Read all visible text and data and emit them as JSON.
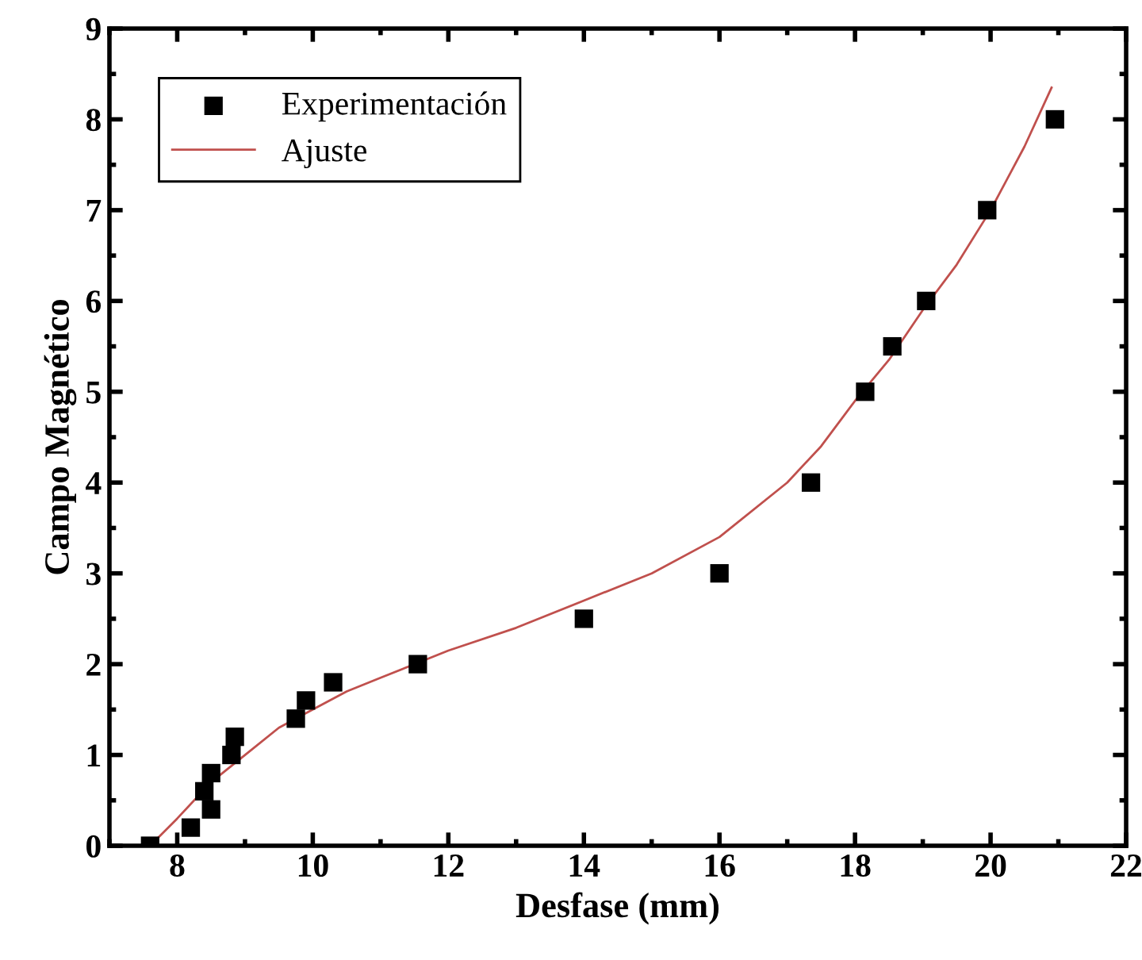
{
  "chart_data": {
    "type": "scatter",
    "xlabel": "Desfase (mm)",
    "ylabel": "Campo Magnético",
    "xlim": [
      7,
      22
    ],
    "xticks": [
      8,
      10,
      12,
      14,
      16,
      18,
      20,
      22
    ],
    "ylim": [
      0,
      9
    ],
    "yticks": [
      0,
      1,
      2,
      3,
      4,
      5,
      6,
      7,
      8,
      9
    ],
    "grid": false,
    "legend": "top left",
    "series": [
      {
        "name": "Experimentación",
        "marker": "square",
        "color": "#000000",
        "x": [
          7.6,
          8.2,
          8.4,
          8.5,
          8.5,
          8.8,
          8.85,
          9.75,
          9.9,
          10.3,
          11.55,
          14.0,
          16.0,
          17.35,
          18.15,
          18.55,
          19.05,
          19.95,
          20.95
        ],
        "values": [
          0,
          0.2,
          0.6,
          0.4,
          0.8,
          1.0,
          1.2,
          1.4,
          1.6,
          1.8,
          2.0,
          2.5,
          3.0,
          4.0,
          5.0,
          5.5,
          6.0,
          7.0,
          8.0
        ]
      },
      {
        "name": "Ajuste",
        "type": "line",
        "line_style": "solid",
        "color": "#c0504d",
        "x": [
          7.6,
          8,
          8.5,
          9,
          9.5,
          10,
          10.5,
          11,
          12,
          13,
          14,
          15,
          16,
          17,
          17.5,
          18,
          18.5,
          19,
          19.5,
          20,
          20.5,
          20.9
        ],
        "values": [
          0,
          0.3,
          0.7,
          1.0,
          1.3,
          1.5,
          1.7,
          1.85,
          2.15,
          2.4,
          2.7,
          3.0,
          3.4,
          4.0,
          4.4,
          4.9,
          5.35,
          5.9,
          6.4,
          7.0,
          7.7,
          8.35
        ]
      }
    ]
  }
}
